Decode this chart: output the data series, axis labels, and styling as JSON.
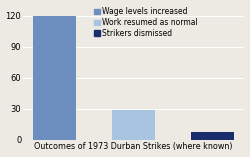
{
  "categories": [
    "Wage levels increased",
    "Work resumed as normal",
    "Strikers dismissed"
  ],
  "values": [
    120,
    29,
    7
  ],
  "colors": [
    "#6d8fbf",
    "#a8c4e0",
    "#1a2e6b"
  ],
  "xlabel": "Outcomes of 1973 Durban Strikes (where known)",
  "ylim": [
    0,
    130
  ],
  "yticks": [
    0,
    30,
    60,
    90,
    120
  ],
  "background_color": "#edeae4",
  "legend_labels": [
    "Wage levels increased",
    "Work resumed as normal",
    "Strikers dismissed"
  ],
  "xlabel_fontsize": 5.8,
  "legend_fontsize": 5.5,
  "tick_fontsize": 6.0,
  "bar_width": 0.55,
  "figsize": [
    2.5,
    1.57
  ],
  "dpi": 100
}
